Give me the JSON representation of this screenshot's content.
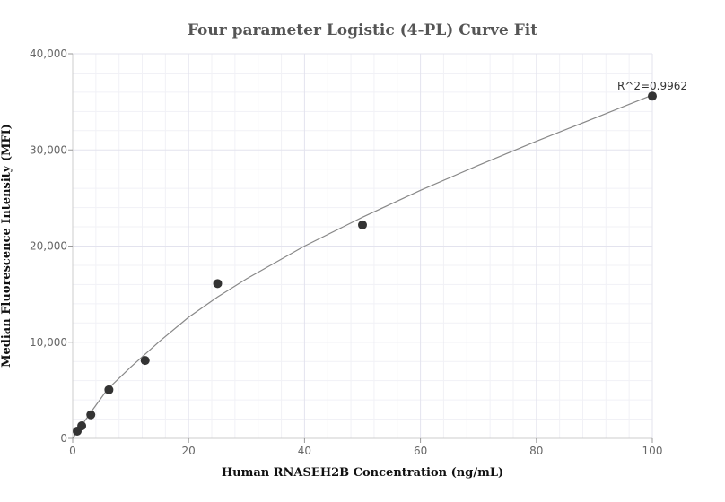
{
  "chart_data": {
    "type": "scatter",
    "title": "Four parameter Logistic (4-PL) Curve Fit",
    "xlabel": "Human RNASEH2B Concentration (ng/mL)",
    "ylabel": "Median Fluorescence Intensity (MFI)",
    "xlim": [
      0,
      100
    ],
    "ylim": [
      0,
      40000
    ],
    "x_ticks": [
      0,
      20,
      40,
      60,
      80,
      100
    ],
    "y_ticks": [
      0,
      10000,
      20000,
      30000,
      40000
    ],
    "x_tick_labels": [
      "0",
      "20",
      "40",
      "60",
      "80",
      "100"
    ],
    "y_tick_labels": [
      "0",
      "10,000",
      "20,000",
      "30,000",
      "40,000"
    ],
    "grid": true,
    "legend": "none",
    "series": [
      {
        "points": [
          {
            "x": 0.78,
            "y": 750
          },
          {
            "x": 1.56,
            "y": 1300
          },
          {
            "x": 3.13,
            "y": 2450
          },
          {
            "x": 6.25,
            "y": 5050
          },
          {
            "x": 12.5,
            "y": 8100
          },
          {
            "x": 25,
            "y": 16100
          },
          {
            "x": 50,
            "y": 22200
          },
          {
            "x": 100,
            "y": 35600
          }
        ],
        "color": "#333333"
      }
    ],
    "fit_curve": {
      "color": "#888888",
      "points": [
        {
          "x": 0,
          "y": 0
        },
        {
          "x": 3,
          "y": 2600
        },
        {
          "x": 6,
          "y": 5100
        },
        {
          "x": 10,
          "y": 7400
        },
        {
          "x": 15,
          "y": 10100
        },
        {
          "x": 20,
          "y": 12600
        },
        {
          "x": 25,
          "y": 14700
        },
        {
          "x": 30,
          "y": 16600
        },
        {
          "x": 40,
          "y": 20000
        },
        {
          "x": 50,
          "y": 23000
        },
        {
          "x": 60,
          "y": 25800
        },
        {
          "x": 70,
          "y": 28400
        },
        {
          "x": 80,
          "y": 30900
        },
        {
          "x": 90,
          "y": 33300
        },
        {
          "x": 100,
          "y": 35700
        }
      ]
    },
    "annotation": {
      "text": "R^2=0.9962",
      "x": 100,
      "y": 35600
    }
  }
}
